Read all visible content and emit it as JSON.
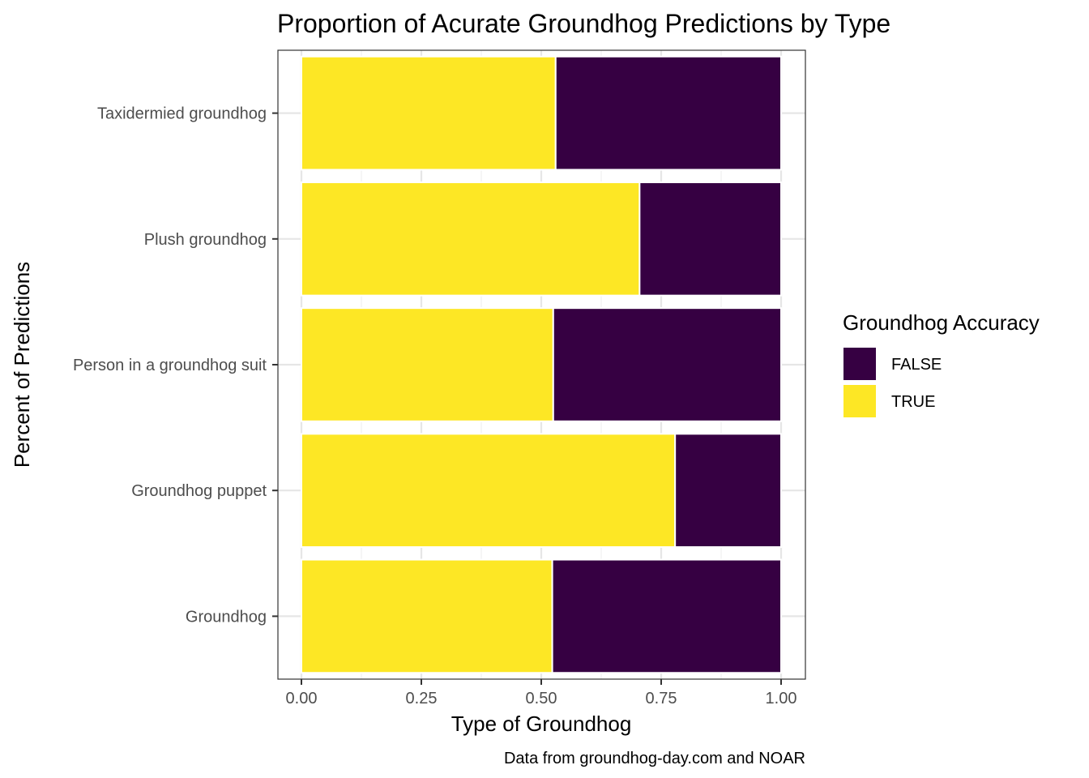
{
  "chart_data": {
    "type": "bar",
    "orientation": "horizontal",
    "stacked": true,
    "title": "Proportion of Acurate Groundhog Predictions by Type",
    "xlabel": "Type of Groundhog",
    "ylabel": "Percent of Predictions",
    "caption": "Data from groundhog-day.com and NOAR",
    "categories": [
      "Groundhog",
      "Groundhog puppet",
      "Person in a groundhog suit",
      "Plush groundhog",
      "Taxidermied groundhog"
    ],
    "series": [
      {
        "name": "TRUE",
        "color": "#FDE725",
        "values": [
          0.523,
          0.779,
          0.525,
          0.705,
          0.53
        ]
      },
      {
        "name": "FALSE",
        "color": "#360042",
        "values": [
          0.477,
          0.221,
          0.475,
          0.295,
          0.47
        ]
      }
    ],
    "xlim": [
      0,
      1
    ],
    "xticks": [
      "0.00",
      "0.25",
      "0.50",
      "0.75",
      "1.00"
    ],
    "xtick_values": [
      0,
      0.25,
      0.5,
      0.75,
      1
    ],
    "grid": true,
    "legend": {
      "title": "Groundhog Accuracy",
      "placement": "right",
      "items": [
        {
          "label": "FALSE",
          "color": "#360042"
        },
        {
          "label": "TRUE",
          "color": "#FDE725"
        }
      ]
    }
  }
}
